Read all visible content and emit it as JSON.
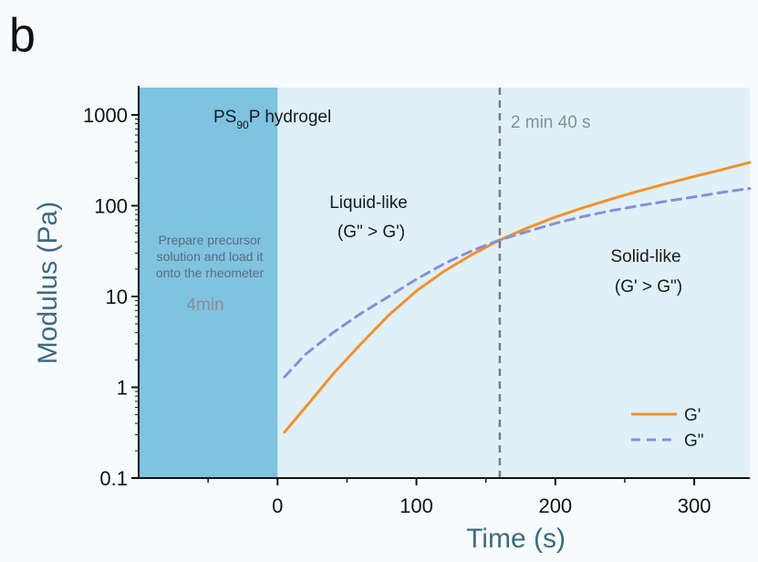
{
  "panel_label": "b",
  "chart_data": {
    "type": "line",
    "xlabel": "Time (s)",
    "ylabel": "Modulus (Pa)",
    "xlim": [
      -100,
      340
    ],
    "ylim": [
      0.1,
      2000
    ],
    "yscale": "log",
    "x_ticks": [
      0,
      100,
      200,
      300
    ],
    "x_tick_labels": [
      "0",
      "100",
      "200",
      "300"
    ],
    "y_ticks": [
      0.1,
      1,
      10,
      100,
      1000
    ],
    "y_tick_labels": [
      "0.1",
      "1",
      "10",
      "100",
      "1000"
    ],
    "grid": false,
    "legend_position": "bottom-right",
    "series": [
      {
        "name": "G'",
        "color": "#f5902c",
        "style": "solid",
        "x": [
          5,
          20,
          40,
          60,
          80,
          100,
          120,
          140,
          160,
          180,
          200,
          220,
          240,
          260,
          280,
          300,
          320,
          340
        ],
        "y": [
          0.32,
          0.6,
          1.4,
          3.0,
          6.2,
          11.5,
          19.0,
          29.0,
          42.0,
          57.0,
          75.0,
          95.0,
          118.0,
          145.0,
          175.0,
          210.0,
          250.0,
          300.0
        ]
      },
      {
        "name": "G\"",
        "color": "#8a8fd6",
        "style": "dashed",
        "x": [
          5,
          20,
          40,
          60,
          80,
          100,
          120,
          140,
          160,
          180,
          200,
          220,
          240,
          260,
          280,
          300,
          320,
          340
        ],
        "y": [
          1.3,
          2.3,
          4.0,
          6.5,
          10.0,
          15.5,
          23.0,
          32.0,
          42.0,
          52.0,
          64.0,
          76.0,
          88.0,
          100.0,
          112.0,
          125.0,
          140.0,
          155.0
        ]
      }
    ],
    "regions": [
      {
        "name": "preparation",
        "x_range": [
          -100,
          0
        ],
        "color": "#7ec3e0"
      },
      {
        "name": "measurement",
        "x_range": [
          0,
          340
        ],
        "color": "#dff0f8"
      }
    ],
    "vline": {
      "x": 160,
      "label": "2 min 40 s",
      "color": "#7c7c7c"
    },
    "annotations": {
      "hydrogel_main": "PS",
      "hydrogel_sub": "90",
      "hydrogel_rest": "P hydrogel",
      "prep_line1": "Prepare precursor",
      "prep_line2": "solution and load it",
      "prep_line3": "onto the rheometer",
      "prep_time": "4min",
      "liquid_line1": "Liquid-like",
      "liquid_line2": "(G\" > G')",
      "solid_line1": "Solid-like",
      "solid_line2": "(G' > G\")"
    }
  }
}
